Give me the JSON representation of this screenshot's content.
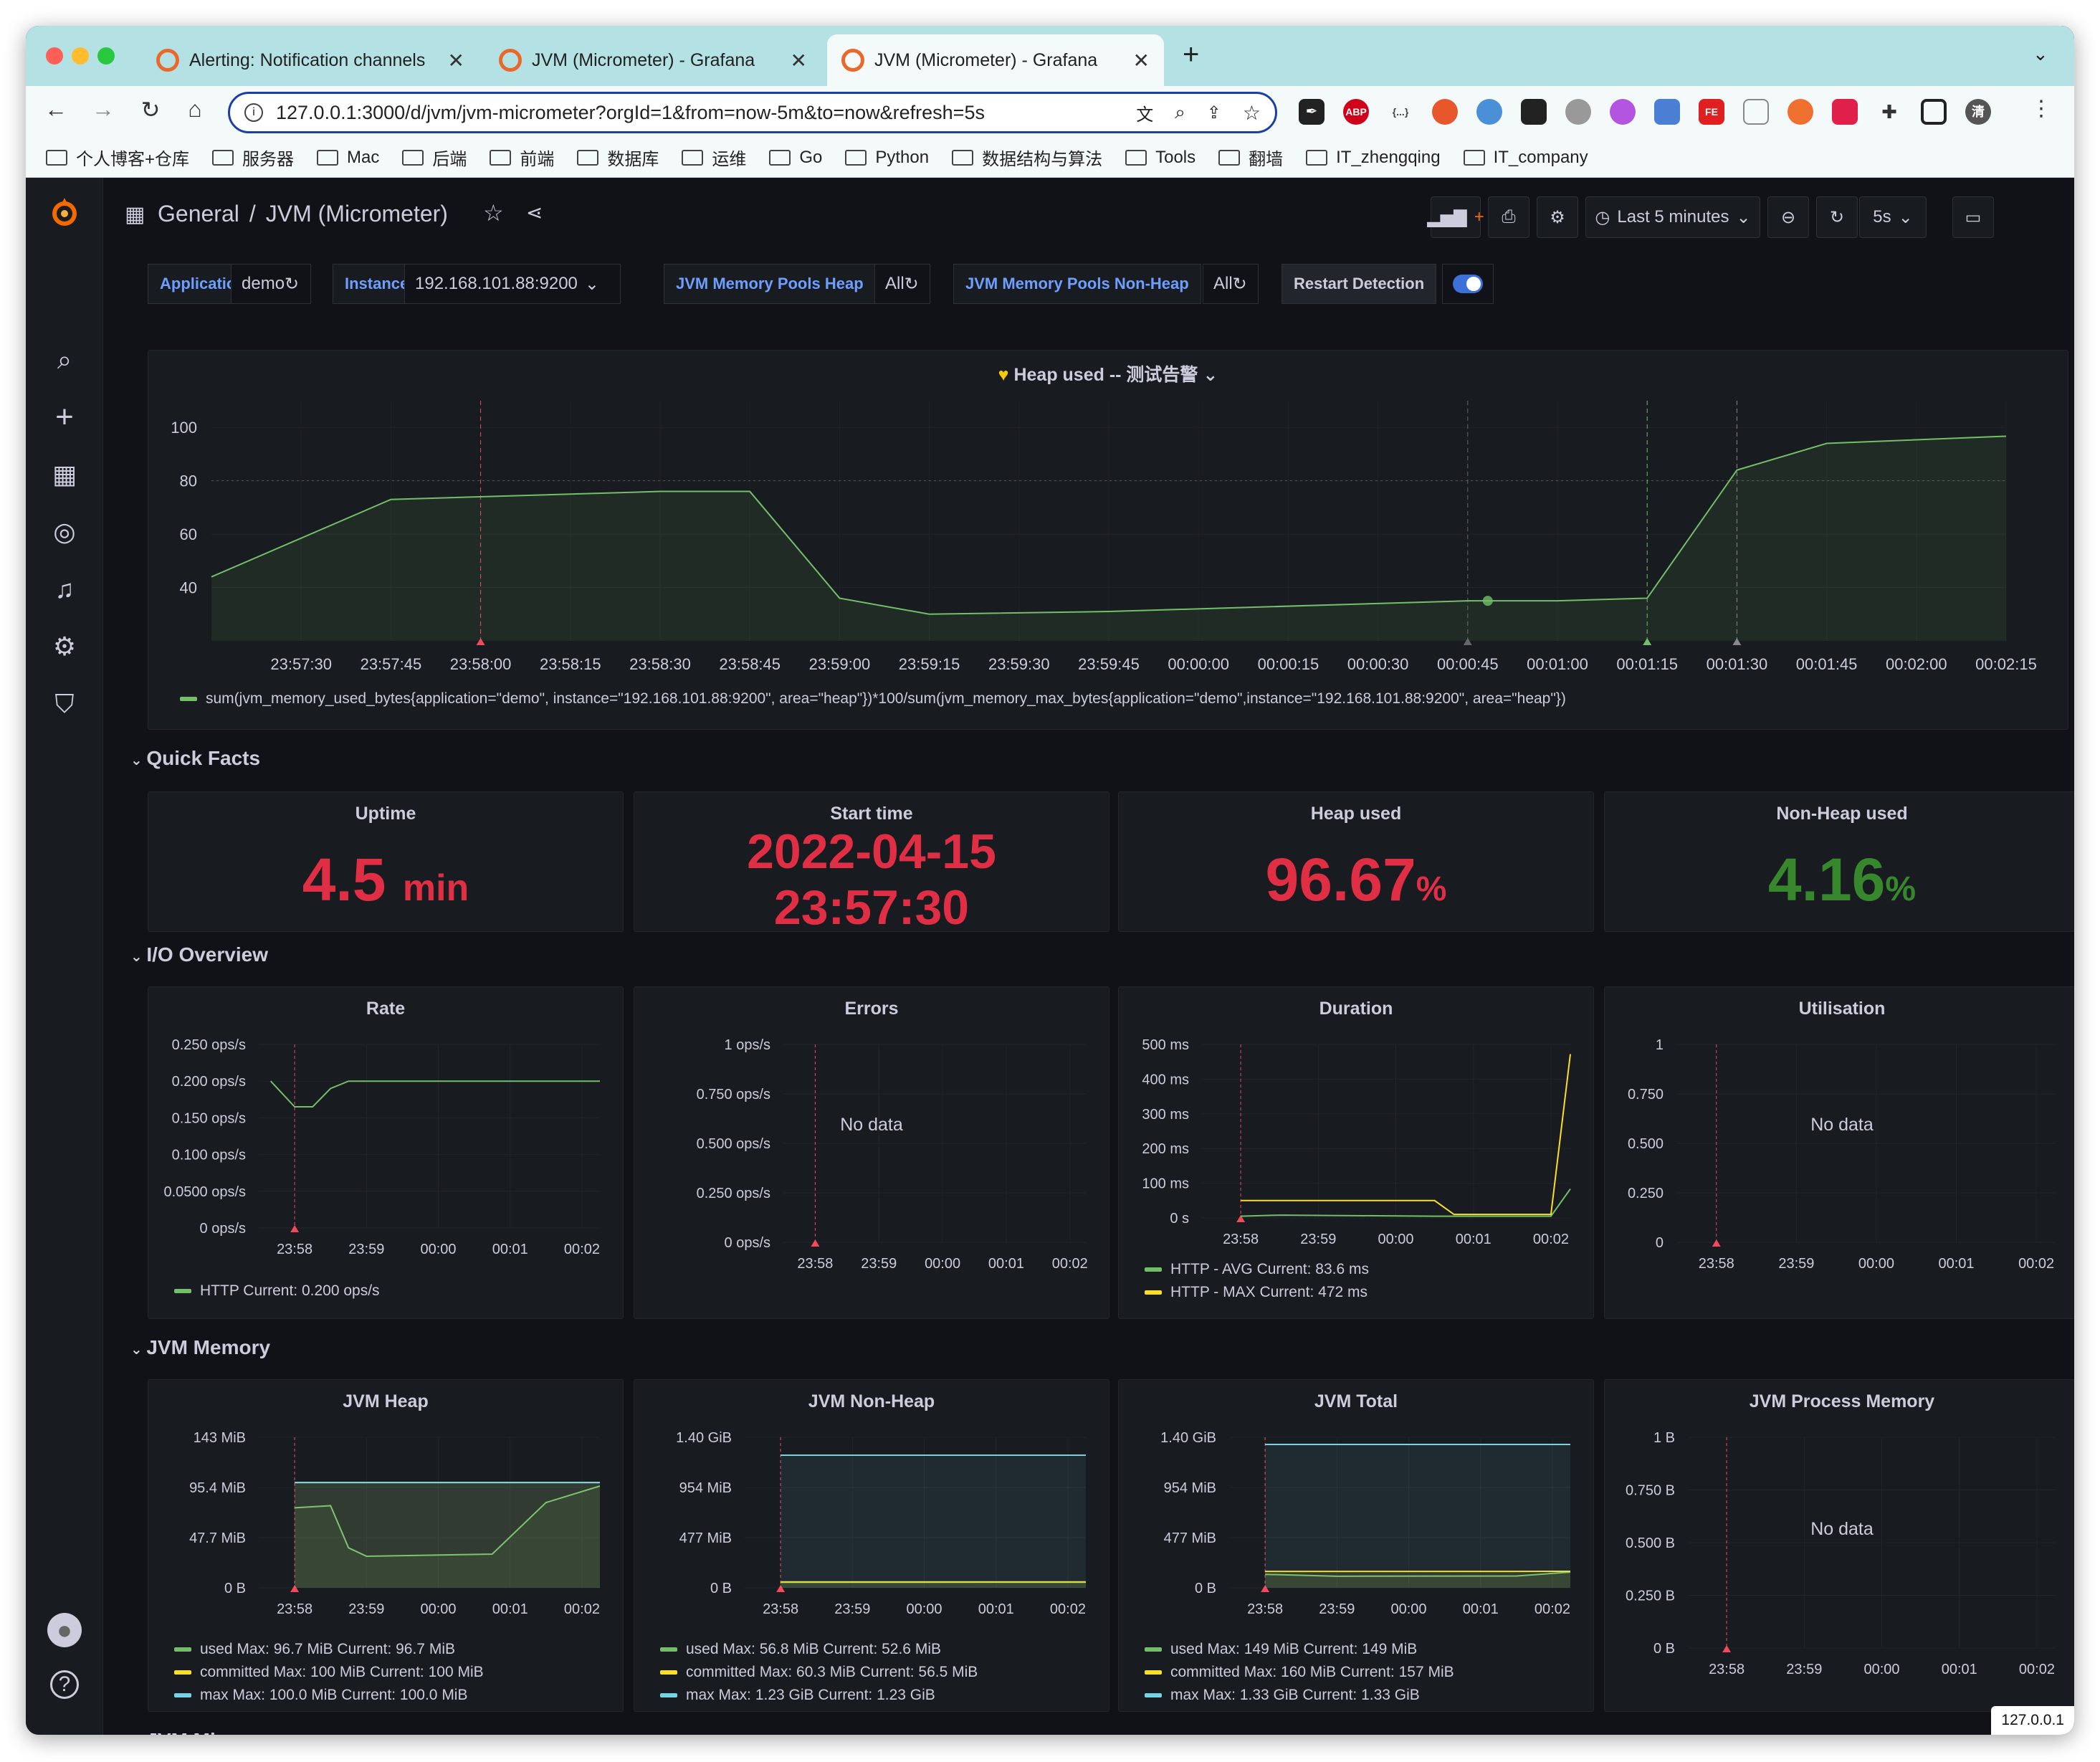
{
  "browser": {
    "tabs": [
      {
        "title": "Alerting: Notification channels"
      },
      {
        "title": "JVM (Micrometer) - Grafana"
      },
      {
        "title": "JVM (Micrometer) - Grafana"
      }
    ],
    "url": "127.0.0.1:3000/d/jvm/jvm-micrometer?orgId=1&from=now-5m&to=now&refresh=5s",
    "extensions": [
      "ABP",
      "{...}",
      "FE"
    ],
    "profile_initial": "清",
    "bookmarks": [
      "个人博客+仓库",
      "服务器",
      "Mac",
      "后端",
      "前端",
      "数据库",
      "运维",
      "Go",
      "Python",
      "数据结构与算法",
      "Tools",
      "翻墙",
      "IT_zhengqing",
      "IT_company"
    ],
    "status_url": "127.0.0.1"
  },
  "dashboard": {
    "folder": "General",
    "separator": "/",
    "title": "JVM (Micrometer)",
    "time_range": "Last 5 minutes",
    "refresh": "5s",
    "variables": [
      {
        "label": "Application",
        "value": "demo"
      },
      {
        "label": "Instance",
        "value": "192.168.101.88:9200"
      },
      {
        "label": "JVM Memory Pools Heap",
        "value": "All"
      },
      {
        "label": "JVM Memory Pools Non-Heap",
        "value": "All"
      }
    ],
    "restart_detection": {
      "label": "Restart Detection",
      "enabled": true
    }
  },
  "heap_panel": {
    "title": "Heap used -- 测试告警",
    "legend": "sum(jvm_memory_used_bytes{application=\"demo\", instance=\"192.168.101.88:9200\", area=\"heap\"})*100/sum(jvm_memory_max_bytes{application=\"demo\",instance=\"192.168.101.88:9200\", area=\"heap\"})"
  },
  "rows": {
    "quick_facts": "Quick Facts",
    "io_overview": "I/O Overview",
    "jvm_memory": "JVM Memory",
    "jvm_misc": "JVM Misc"
  },
  "stats": {
    "uptime": {
      "title": "Uptime",
      "value": "4.5",
      "unit": "min"
    },
    "start_time": {
      "title": "Start time",
      "line1": "2022-04-15",
      "line2": "23:57:30"
    },
    "heap_used": {
      "title": "Heap used",
      "value": "96.67",
      "unit": "%"
    },
    "nonheap_used": {
      "title": "Non-Heap used",
      "value": "4.16",
      "unit": "%"
    }
  },
  "io": {
    "rate": {
      "title": "Rate",
      "legend": "HTTP  Current: 0.200 ops/s"
    },
    "errors": {
      "title": "Errors",
      "no_data": "No data"
    },
    "duration": {
      "title": "Duration",
      "legend_avg": "HTTP - AVG  Current: 83.6 ms",
      "legend_max": "HTTP - MAX  Current: 472 ms"
    },
    "utilisation": {
      "title": "Utilisation",
      "no_data": "No data"
    }
  },
  "memory": {
    "heap": {
      "title": "JVM Heap",
      "legend": [
        "used  Max: 96.7 MiB  Current: 96.7 MiB",
        "committed  Max: 100 MiB  Current: 100 MiB",
        "max  Max: 100.0 MiB  Current: 100.0 MiB"
      ]
    },
    "nonheap": {
      "title": "JVM Non-Heap",
      "legend": [
        "used  Max: 56.8 MiB  Current: 52.6 MiB",
        "committed  Max: 60.3 MiB  Current: 56.5 MiB",
        "max  Max: 1.23 GiB  Current: 1.23 GiB"
      ]
    },
    "total": {
      "title": "JVM Total",
      "legend": [
        "used  Max: 149 MiB  Current: 149 MiB",
        "committed  Max: 160 MiB  Current: 157 MiB",
        "max  Max: 1.33 GiB  Current: 1.33 GiB"
      ]
    },
    "process": {
      "title": "JVM Process Memory",
      "no_data": "No data"
    }
  },
  "colors": {
    "green": "#73bf69",
    "yellow": "#fade2a",
    "blue": "#5794f2",
    "red": "#f2495c",
    "cyan": "#8ab8ff",
    "stat_red": "#e02f44",
    "stat_green": "#37872d"
  },
  "chart_data": [
    {
      "type": "line",
      "title": "Heap used -- 测试告警",
      "x": [
        "23:57:15",
        "23:57:45",
        "23:58:30",
        "23:58:45",
        "23:59:00",
        "23:59:15",
        "23:59:45",
        "00:00:45",
        "00:01:00",
        "00:01:15",
        "00:01:30",
        "00:01:45",
        "00:02:15"
      ],
      "series": [
        {
          "name": "sum(jvm_memory_used_bytes{application=\"demo\", instance=\"192.168.101.88:9200\", area=\"heap\"})*100/sum(jvm_memory_max_bytes{application=\"demo\",instance=\"192.168.101.88:9200\", area=\"heap\"})",
          "values": [
            44,
            73,
            76,
            76,
            36,
            30,
            31,
            35,
            35,
            36,
            84,
            94,
            96.7
          ]
        }
      ],
      "x_ticks": [
        "23:57:30",
        "23:57:45",
        "23:58:00",
        "23:58:15",
        "23:58:30",
        "23:58:45",
        "23:59:00",
        "23:59:15",
        "23:59:30",
        "23:59:45",
        "00:00:00",
        "00:00:15",
        "00:00:30",
        "00:00:45",
        "00:01:00",
        "00:01:15",
        "00:01:30",
        "00:01:45",
        "00:02:00",
        "00:02:15"
      ],
      "y_ticks": [
        "100",
        "80",
        "60",
        "40"
      ],
      "ylim": [
        20,
        110
      ],
      "threshold": 80
    },
    {
      "type": "line",
      "title": "Rate",
      "x": [
        "23:57:40",
        "23:58:00",
        "23:58:15",
        "23:58:30",
        "23:58:45",
        "00:02:15"
      ],
      "series": [
        {
          "name": "HTTP",
          "values": [
            0.2,
            0.165,
            0.165,
            0.19,
            0.2,
            0.2
          ]
        }
      ],
      "y_ticks": [
        "0.250 ops/s",
        "0.200 ops/s",
        "0.150 ops/s",
        "0.100 ops/s",
        "0.0500 ops/s",
        "0 ops/s"
      ],
      "x_ticks": [
        "23:58",
        "23:59",
        "00:00",
        "00:01",
        "00:02"
      ],
      "ylim": [
        0,
        0.25
      ]
    },
    {
      "type": "line",
      "title": "Errors",
      "series": [],
      "y_ticks": [
        "1 ops/s",
        "0.750 ops/s",
        "0.500 ops/s",
        "0.250 ops/s",
        "0 ops/s"
      ],
      "x_ticks": [
        "23:58",
        "23:59",
        "00:00",
        "00:01",
        "00:02"
      ]
    },
    {
      "type": "line",
      "title": "Duration",
      "x": [
        "23:58:00",
        "23:58:30",
        "00:00:30",
        "00:00:45",
        "00:01:45",
        "00:02:00",
        "00:02:15"
      ],
      "series": [
        {
          "name": "HTTP - AVG",
          "values": [
            5,
            8,
            5,
            5,
            5,
            5,
            83.6
          ]
        },
        {
          "name": "HTTP - MAX",
          "values": [
            50,
            50,
            50,
            10,
            10,
            10,
            472
          ]
        }
      ],
      "y_ticks": [
        "500 ms",
        "400 ms",
        "300 ms",
        "200 ms",
        "100 ms",
        "0 s"
      ],
      "x_ticks": [
        "23:58",
        "23:59",
        "00:00",
        "00:01",
        "00:02"
      ],
      "ylim": [
        0,
        500
      ]
    },
    {
      "type": "line",
      "title": "Utilisation",
      "series": [],
      "y_ticks": [
        "1",
        "0.750",
        "0.500",
        "0.250",
        "0"
      ],
      "x_ticks": [
        "23:58",
        "23:59",
        "00:00",
        "00:01",
        "00:02"
      ]
    },
    {
      "type": "area",
      "title": "JVM Heap",
      "x": [
        "23:58:00",
        "23:58:30",
        "23:58:45",
        "23:59:00",
        "00:00:45",
        "00:01:30",
        "00:02:15"
      ],
      "series": [
        {
          "name": "used",
          "values": [
            76,
            78,
            38,
            30,
            32,
            81,
            96.7
          ]
        },
        {
          "name": "committed",
          "values": [
            100,
            100,
            100,
            100,
            100,
            100,
            100
          ]
        },
        {
          "name": "max",
          "values": [
            100,
            100,
            100,
            100,
            100,
            100,
            100
          ]
        }
      ],
      "y_ticks": [
        "143 MiB",
        "95.4 MiB",
        "47.7 MiB",
        "0 B"
      ],
      "x_ticks": [
        "23:58",
        "23:59",
        "00:00",
        "00:01",
        "00:02"
      ],
      "ylim": [
        0,
        143
      ]
    },
    {
      "type": "area",
      "title": "JVM Non-Heap",
      "x": [
        "23:58:00",
        "00:02:15"
      ],
      "series": [
        {
          "name": "used",
          "values": [
            52,
            52.6
          ]
        },
        {
          "name": "committed",
          "values": [
            56,
            56.5
          ]
        },
        {
          "name": "max",
          "values": [
            1260,
            1260
          ]
        }
      ],
      "y_ticks": [
        "1.40 GiB",
        "954 MiB",
        "477 MiB",
        "0 B"
      ],
      "x_ticks": [
        "23:58",
        "23:59",
        "00:00",
        "00:01",
        "00:02"
      ],
      "ylim": [
        0,
        1430
      ]
    },
    {
      "type": "area",
      "title": "JVM Total",
      "x": [
        "23:58:00",
        "23:59:00",
        "00:01:30",
        "00:02:15"
      ],
      "series": [
        {
          "name": "used",
          "values": [
            128,
            110,
            112,
            149
          ]
        },
        {
          "name": "committed",
          "values": [
            156,
            156,
            156,
            157
          ]
        },
        {
          "name": "max",
          "values": [
            1362,
            1362,
            1362,
            1362
          ]
        }
      ],
      "y_ticks": [
        "1.40 GiB",
        "954 MiB",
        "477 MiB",
        "0 B"
      ],
      "x_ticks": [
        "23:58",
        "23:59",
        "00:00",
        "00:01",
        "00:02"
      ],
      "ylim": [
        0,
        1430
      ]
    },
    {
      "type": "line",
      "title": "JVM Process Memory",
      "series": [],
      "y_ticks": [
        "1 B",
        "0.750 B",
        "0.500 B",
        "0.250 B",
        "0 B"
      ],
      "x_ticks": [
        "23:58",
        "23:59",
        "00:00",
        "00:01",
        "00:02"
      ]
    }
  ]
}
